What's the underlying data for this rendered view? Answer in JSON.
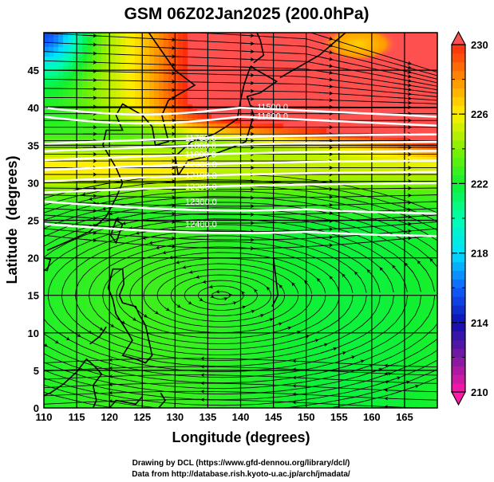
{
  "chart_data": {
    "type": "heatmap",
    "title": "GSM 06Z02Jan2025 (200.0hPa)",
    "xlabel": "Longitude (degrees)",
    "ylabel": "Latitude  (degrees)",
    "xlim": [
      110,
      170
    ],
    "ylim": [
      0,
      50
    ],
    "x_ticks": [
      110,
      115,
      120,
      125,
      130,
      135,
      140,
      145,
      150,
      155,
      160,
      165
    ],
    "x_tick_labels": [
      "110",
      "115",
      "120",
      "125",
      "130",
      "135",
      "140",
      "145",
      "150",
      "155",
      "160",
      "165"
    ],
    "y_ticks": [
      0,
      5,
      10,
      15,
      20,
      25,
      30,
      35,
      40,
      45
    ],
    "y_tick_labels": [
      "0",
      "5",
      "10",
      "15",
      "20",
      "25",
      "30",
      "35",
      "40",
      "45"
    ],
    "grid": true,
    "colorbar": {
      "range": [
        210,
        230
      ],
      "ticks": [
        210,
        214,
        218,
        222,
        226,
        230
      ],
      "tick_labels": [
        "210",
        "214",
        "218",
        "222",
        "226",
        "230"
      ],
      "colors": [
        {
          "value": 210,
          "color": "#ff1aa8"
        },
        {
          "value": 212,
          "color": "#7a1aa0"
        },
        {
          "value": 214,
          "color": "#1010b0"
        },
        {
          "value": 216,
          "color": "#1060ff"
        },
        {
          "value": 218,
          "color": "#00e0ff"
        },
        {
          "value": 220,
          "color": "#00ffb0"
        },
        {
          "value": 222,
          "color": "#10f030"
        },
        {
          "value": 224,
          "color": "#80f000"
        },
        {
          "value": 226,
          "color": "#fff000"
        },
        {
          "value": 228,
          "color": "#ff9000"
        },
        {
          "value": 230,
          "color": "#ff2a10"
        }
      ],
      "over_color": "#ff5050",
      "under_color": "#ff1aa8"
    },
    "contours": [
      {
        "value": 11500.0,
        "label": "11500.0",
        "lat": 40.0
      },
      {
        "value": 11600.0,
        "label": "11600.0",
        "lat": 38.8
      },
      {
        "value": 11700.0,
        "label": "11700.0",
        "lat": 36.0
      },
      {
        "value": 11800.0,
        "label": "11800.0",
        "lat": 35.0
      },
      {
        "value": 11900.0,
        "label": "11900.0",
        "lat": 33.8
      },
      {
        "value": 12000.0,
        "label": "12000.0",
        "lat": 32.5
      },
      {
        "value": 12100.0,
        "label": "12100.0",
        "lat": 31.0
      },
      {
        "value": 12200.0,
        "label": "12200.0",
        "lat": 29.5
      },
      {
        "value": 12300.0,
        "label": "12300.0",
        "lat": 27.5
      },
      {
        "value": 12400.0,
        "label": "12400.0",
        "lat": 24.5
      }
    ],
    "temperature_field_summary": [
      {
        "region": "northwest corner",
        "value": 217
      },
      {
        "region": "north of 38N east of 140E",
        "value": 230
      },
      {
        "region": "30-35N",
        "value": 226
      },
      {
        "region": "tropics below 25N",
        "value": 222
      }
    ],
    "vortex_center": {
      "lon": 137,
      "lat": 15
    }
  },
  "credits": {
    "line1": "Drawing by DCL (https://www.gfd-dennou.org/library/dcl/)",
    "line2": "Data from http://database.rish.kyoto-u.ac.jp/arch/jmadata/"
  }
}
